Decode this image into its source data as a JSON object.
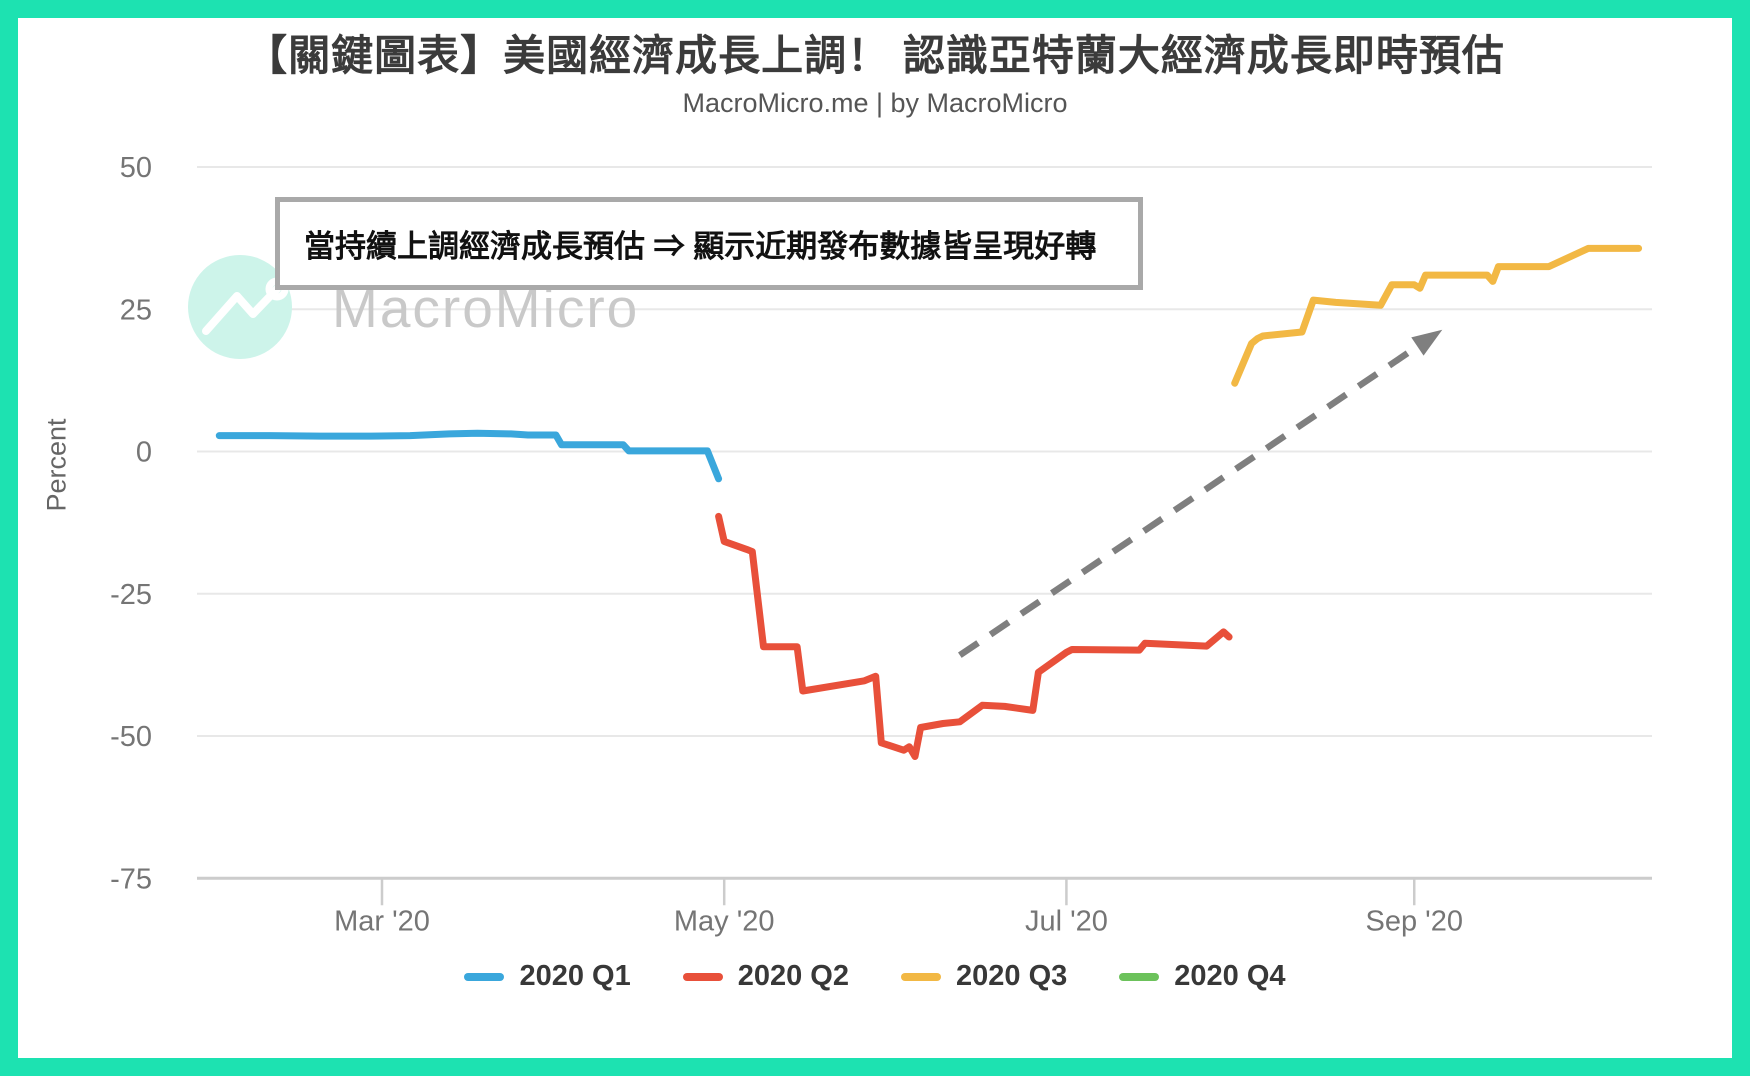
{
  "frame": {
    "border_color": "#1de2b1",
    "background": "#ffffff"
  },
  "header": {
    "title": "【關鍵圖表】美國經濟成長上調！ 認識亞特蘭大經濟成長即時預估",
    "subtitle": "MacroMicro.me | by MacroMicro"
  },
  "annotation": {
    "text": "當持續上調經濟成長預估 ⇒ 顯示近期發布數據皆呈現好轉",
    "border_color": "#a9a9a9"
  },
  "watermark": {
    "text": "MacroMicro",
    "logo": "macromicro-mountain-logo",
    "circle_color": "#cdf4ea",
    "text_color": "#c9c9c9"
  },
  "trend_arrow": {
    "style": "dashed",
    "color": "#7f7f7f",
    "from_date": "2020-06-12",
    "from_value": -35.8,
    "to_date": "2020-09-06",
    "to_value": 21.4
  },
  "chart_data": {
    "type": "line",
    "title": "【關鍵圖表】美國經濟成長上調！ 認識亞特蘭大經濟成長即時預估",
    "subtitle": "MacroMicro.me | by MacroMicro",
    "ylabel": "Percent",
    "xlabel": "",
    "ylim": [
      -75,
      50
    ],
    "yticks": [
      50,
      25,
      0,
      -25,
      -50,
      -75
    ],
    "xtick_labels": [
      "Mar '20",
      "May '20",
      "Jul '20",
      "Sep '20"
    ],
    "xtick_dates": [
      "2020-03-01",
      "2020-05-01",
      "2020-07-01",
      "2020-09-01"
    ],
    "grid": "horizontal",
    "legend_position": "bottom",
    "style": {
      "grid_color": "#e8e8e8",
      "axis_color": "#cccccc",
      "tick_label_color": "#757575"
    },
    "series": [
      {
        "name": "2020 Q1",
        "color": "#3aa7dc",
        "points": [
          [
            "2020-02-01",
            2.8
          ],
          [
            "2020-02-10",
            2.8
          ],
          [
            "2020-02-19",
            2.7
          ],
          [
            "2020-02-28",
            2.7
          ],
          [
            "2020-03-06",
            2.8
          ],
          [
            "2020-03-13",
            3.1
          ],
          [
            "2020-03-18",
            3.2
          ],
          [
            "2020-03-24",
            3.1
          ],
          [
            "2020-03-27",
            2.9
          ],
          [
            "2020-04-01",
            2.9
          ],
          [
            "2020-04-02",
            1.2
          ],
          [
            "2020-04-13",
            1.2
          ],
          [
            "2020-04-14",
            0.1
          ],
          [
            "2020-04-28",
            0.1
          ],
          [
            "2020-04-30",
            -4.8
          ]
        ]
      },
      {
        "name": "2020 Q2",
        "color": "#e8503a",
        "points": [
          [
            "2020-04-30",
            -11.4
          ],
          [
            "2020-05-01",
            -15.8
          ],
          [
            "2020-05-05",
            -17.2
          ],
          [
            "2020-05-06",
            -17.6
          ],
          [
            "2020-05-08",
            -34.3
          ],
          [
            "2020-05-14",
            -34.3
          ],
          [
            "2020-05-15",
            -42.1
          ],
          [
            "2020-05-26",
            -40.3
          ],
          [
            "2020-05-28",
            -39.5
          ],
          [
            "2020-05-29",
            -51.2
          ],
          [
            "2020-06-02",
            -52.5
          ],
          [
            "2020-06-03",
            -51.9
          ],
          [
            "2020-06-04",
            -53.6
          ],
          [
            "2020-06-05",
            -48.5
          ],
          [
            "2020-06-09",
            -47.8
          ],
          [
            "2020-06-12",
            -47.5
          ],
          [
            "2020-06-16",
            -44.6
          ],
          [
            "2020-06-20",
            -44.8
          ],
          [
            "2020-06-25",
            -45.5
          ],
          [
            "2020-06-26",
            -38.8
          ],
          [
            "2020-07-01",
            -35.3
          ],
          [
            "2020-07-02",
            -34.8
          ],
          [
            "2020-07-14",
            -34.9
          ],
          [
            "2020-07-15",
            -33.7
          ],
          [
            "2020-07-26",
            -34.2
          ],
          [
            "2020-07-29",
            -31.7
          ],
          [
            "2020-07-30",
            -32.6
          ]
        ]
      },
      {
        "name": "2020 Q3",
        "color": "#f2b844",
        "points": [
          [
            "2020-07-31",
            12.0
          ],
          [
            "2020-08-03",
            19.0
          ],
          [
            "2020-08-04",
            19.8
          ],
          [
            "2020-08-05",
            20.3
          ],
          [
            "2020-08-12",
            21.0
          ],
          [
            "2020-08-14",
            26.6
          ],
          [
            "2020-08-18",
            26.2
          ],
          [
            "2020-08-26",
            25.7
          ],
          [
            "2020-08-28",
            29.3
          ],
          [
            "2020-09-01",
            29.3
          ],
          [
            "2020-09-02",
            28.7
          ],
          [
            "2020-09-03",
            31.0
          ],
          [
            "2020-09-14",
            31.0
          ],
          [
            "2020-09-15",
            29.9
          ],
          [
            "2020-09-16",
            32.5
          ],
          [
            "2020-09-25",
            32.5
          ],
          [
            "2020-10-02",
            35.7
          ],
          [
            "2020-10-11",
            35.7
          ]
        ]
      },
      {
        "name": "2020 Q4",
        "color": "#6cc25b",
        "points": []
      }
    ]
  }
}
